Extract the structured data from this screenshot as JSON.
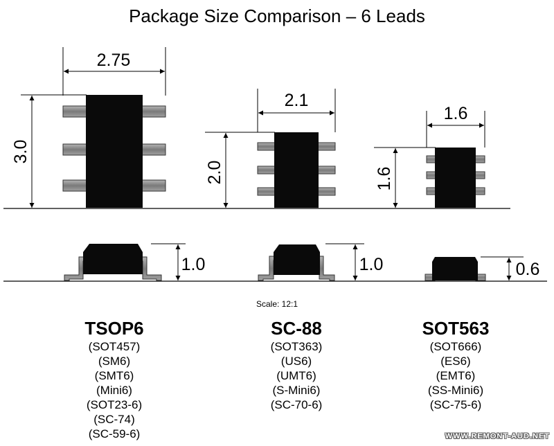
{
  "title": "Package Size Comparison – 6 Leads",
  "scale_label": "Scale: 12:1",
  "packages": [
    {
      "name": "TSOP6",
      "width_label": "2.75",
      "length_label": "3.0",
      "height_label": "1.0",
      "aliases": [
        "(SOT457)",
        "(SM6)",
        "(SMT6)",
        "(Mini6)",
        "(SOT23-6)",
        "(SC-74)",
        "(SC-59-6)"
      ]
    },
    {
      "name": "SC-88",
      "width_label": "2.1",
      "length_label": "2.0",
      "height_label": "1.0",
      "aliases": [
        "(SOT363)",
        "(US6)",
        "(UMT6)",
        "(S-Mini6)",
        "(SC-70-6)"
      ]
    },
    {
      "name": "SOT563",
      "width_label": "1.6",
      "length_label": "1.6",
      "height_label": "0.6",
      "aliases": [
        "(SOT666)",
        "(ES6)",
        "(EMT6)",
        "(SS-Mini6)",
        "(SC-75-6)"
      ]
    }
  ],
  "watermark": "WWW.REMONT-AUD.NET",
  "colors": {
    "body": "#000000",
    "lead": "#8c8c8c",
    "line": "#000000"
  }
}
